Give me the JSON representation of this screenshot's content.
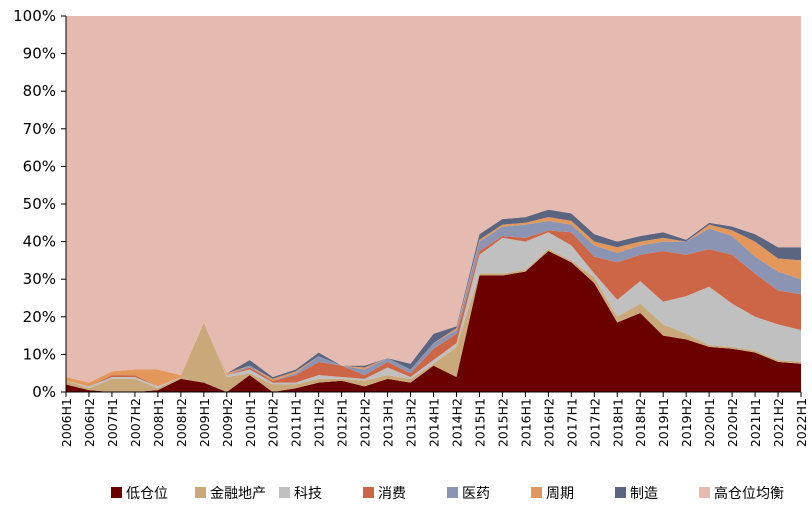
{
  "chart_data": {
    "type": "area",
    "stacked": true,
    "title": "",
    "xlabel": "",
    "ylabel": "",
    "ylim": [
      0,
      100
    ],
    "y_ticks": [
      "0%",
      "10%",
      "20%",
      "30%",
      "40%",
      "50%",
      "60%",
      "70%",
      "80%",
      "90%",
      "100%"
    ],
    "legend_position": "bottom",
    "categories": [
      "2006H1",
      "2006H2",
      "2007H1",
      "2007H2",
      "2008H1",
      "2008H2",
      "2009H1",
      "2009H2",
      "2010H1",
      "2010H2",
      "2011H1",
      "2011H2",
      "2012H1",
      "2012H2",
      "2013H1",
      "2013H2",
      "2014H1",
      "2014H2",
      "2015H1",
      "2015H2",
      "2016H1",
      "2016H2",
      "2017H1",
      "2017H2",
      "2018H1",
      "2018H2",
      "2019H1",
      "2019H2",
      "2020H1",
      "2020H2",
      "2021H1",
      "2021H2",
      "2022H1"
    ],
    "series": [
      {
        "name": "低仓位",
        "color": "#6b0000",
        "values": [
          2,
          0.5,
          0,
          0,
          0.5,
          3.5,
          2.5,
          0,
          4.5,
          0,
          1,
          2.5,
          3,
          1.5,
          3.5,
          2.5,
          7,
          4,
          31,
          31,
          32,
          37.5,
          34.5,
          29,
          18.5,
          21,
          15,
          14,
          12,
          11.5,
          10.5,
          8,
          7.5
        ]
      },
      {
        "name": "金融地产",
        "color": "#c9a87a",
        "values": [
          1,
          0.5,
          3.5,
          3.5,
          0.5,
          0.5,
          16,
          4,
          0.5,
          2,
          1,
          1,
          0.5,
          1.5,
          1,
          1,
          0.5,
          8,
          0.5,
          0.5,
          0.5,
          0.5,
          0.5,
          1.5,
          1.5,
          2.5,
          3,
          1.5,
          0.5,
          0.5,
          0.5,
          0.5,
          0.5
        ]
      },
      {
        "name": "科技",
        "color": "#c0c0c0",
        "values": [
          0,
          0.5,
          0.5,
          0.5,
          0.5,
          0,
          0,
          0.5,
          1,
          0.5,
          0.5,
          1,
          0.5,
          0.5,
          2,
          0.5,
          1,
          1,
          5,
          9.5,
          7.5,
          4.5,
          4,
          1,
          4.5,
          6,
          6,
          10,
          15.5,
          11.5,
          9,
          9.5,
          8.5
        ]
      },
      {
        "name": "消费",
        "color": "#cc6647",
        "values": [
          0,
          0,
          0.5,
          0.5,
          0,
          0,
          0,
          0,
          0.5,
          0.5,
          2,
          3.5,
          3,
          1,
          1.5,
          1,
          3,
          2.5,
          1,
          0.5,
          1,
          0.5,
          3.5,
          4.5,
          10,
          7,
          13.5,
          11,
          10,
          13,
          11.5,
          9,
          9.5
        ]
      },
      {
        "name": "医药",
        "color": "#8b95b3",
        "values": [
          0,
          0,
          0,
          0,
          0,
          0,
          0,
          0,
          0.5,
          0,
          0.5,
          1.5,
          0,
          1.5,
          1,
          1,
          1.5,
          1,
          2.5,
          2.5,
          3.5,
          2.5,
          2,
          3,
          2.5,
          2.5,
          2.5,
          3.5,
          5.5,
          5,
          4.5,
          5,
          4
        ]
      },
      {
        "name": "周期",
        "color": "#e4975a",
        "values": [
          1,
          1,
          1,
          1.5,
          4.5,
          0.5,
          0,
          0.5,
          0,
          0.5,
          0.5,
          0,
          0,
          0.5,
          0,
          0,
          0,
          0.5,
          0.5,
          0.5,
          0.5,
          1,
          1,
          1,
          1.5,
          1,
          1,
          0,
          1,
          1.5,
          4,
          3.5,
          5
        ]
      },
      {
        "name": "制造",
        "color": "#5c6580",
        "values": [
          0,
          0,
          0,
          0,
          0,
          0,
          0,
          0,
          1.5,
          0.5,
          0.5,
          1,
          0,
          0.5,
          0,
          1.5,
          2.5,
          0.5,
          1.5,
          1.5,
          1.5,
          2,
          2,
          2,
          1.5,
          1.5,
          1.5,
          0.5,
          0.5,
          1,
          2,
          3,
          3.5
        ]
      },
      {
        "name": "高仓位均衡",
        "color": "#e5bab1",
        "values": [
          96,
          97.5,
          94.5,
          94,
          94,
          95.5,
          81.5,
          95,
          91.5,
          96,
          94,
          89.5,
          93,
          93,
          91,
          92.5,
          84.5,
          82.5,
          58,
          54,
          53.5,
          51.5,
          52.5,
          58,
          60,
          58.5,
          57.5,
          59.5,
          55,
          56,
          58,
          61.5,
          61.5
        ]
      }
    ]
  }
}
